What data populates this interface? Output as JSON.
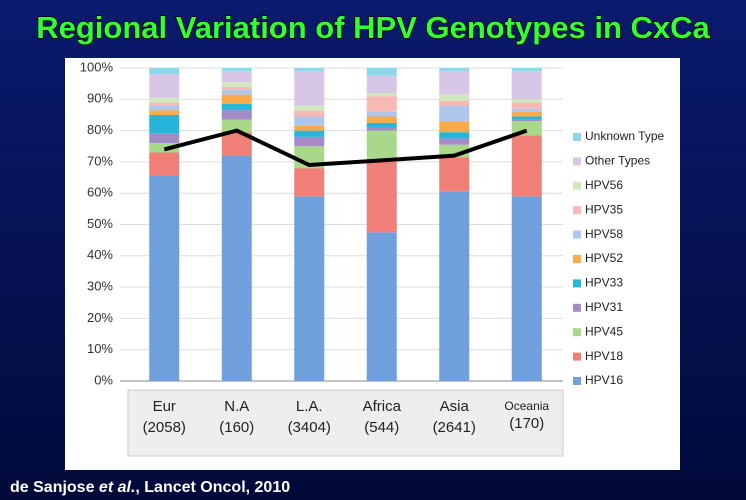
{
  "chart_data": {
    "type": "stacked_bar",
    "title": "Regional Variation of HPV Genotypes in CxCa",
    "categories": [
      [
        "Eur",
        "(2058)"
      ],
      [
        "N.A",
        "(160)"
      ],
      [
        "L.A.",
        "(3404)"
      ],
      [
        "Africa",
        "(544)"
      ],
      [
        "Asia",
        "(2641)"
      ],
      [
        "Oceania",
        "(170)"
      ]
    ],
    "series": [
      {
        "name": "HPV16",
        "color": "#6fa0dc",
        "values": [
          65.5,
          72,
          59,
          47.5,
          60.5,
          59
        ]
      },
      {
        "name": "HPV18",
        "color": "#f07f78",
        "values": [
          7.5,
          7.5,
          9,
          22.5,
          11,
          19.5
        ]
      },
      {
        "name": "HPV45",
        "color": "#a8d98a",
        "values": [
          3,
          4,
          7,
          10,
          4,
          4.5
        ]
      },
      {
        "name": "HPV31",
        "color": "#a48bc7",
        "values": [
          3,
          3,
          3,
          1,
          2,
          0.5
        ]
      },
      {
        "name": "HPV33",
        "color": "#28b6d8",
        "values": [
          6,
          2,
          2,
          1.5,
          2,
          1
        ]
      },
      {
        "name": "HPV52",
        "color": "#f9ab4b",
        "values": [
          1.5,
          3,
          1.5,
          2,
          3.5,
          1.5
        ]
      },
      {
        "name": "HPV58",
        "color": "#aec6ec",
        "values": [
          1.5,
          1.5,
          3,
          1.5,
          5,
          1
        ]
      },
      {
        "name": "HPV35",
        "color": "#f8b9b5",
        "values": [
          1,
          1,
          2,
          5,
          1.5,
          2
        ]
      },
      {
        "name": "HPV56",
        "color": "#cfe8bd",
        "values": [
          1.5,
          1.5,
          1.5,
          1,
          2,
          1
        ]
      },
      {
        "name": "Other Types",
        "color": "#d7c6e6",
        "values": [
          7.5,
          3.5,
          11,
          5.5,
          7.5,
          9
        ]
      },
      {
        "name": "Unknown Type",
        "color": "#8fd6ea",
        "values": [
          2,
          1,
          1,
          2.5,
          1,
          1
        ]
      }
    ],
    "line": {
      "color": "#000000",
      "values": [
        74,
        80,
        69,
        70.5,
        72,
        80
      ]
    },
    "ylim": [
      0,
      100
    ],
    "yticks": [
      {
        "value": 0,
        "label": "0%"
      },
      {
        "value": 10,
        "label": "10%"
      },
      {
        "value": 20,
        "label": "20%"
      },
      {
        "value": 30,
        "label": "30%"
      },
      {
        "value": 40,
        "label": "40%"
      },
      {
        "value": 50,
        "label": "50%"
      },
      {
        "value": 60,
        "label": "60%"
      },
      {
        "value": 70,
        "label": "70%"
      },
      {
        "value": 80,
        "label": "80%"
      },
      {
        "value": 90,
        "label": "90%"
      },
      {
        "value": 100,
        "label": "100%"
      }
    ],
    "grid": true,
    "legend": "right",
    "citation": {
      "author": "de Sanjose ",
      "etal": "et al.",
      "rest": ", Lancet Oncol, 2010"
    }
  }
}
